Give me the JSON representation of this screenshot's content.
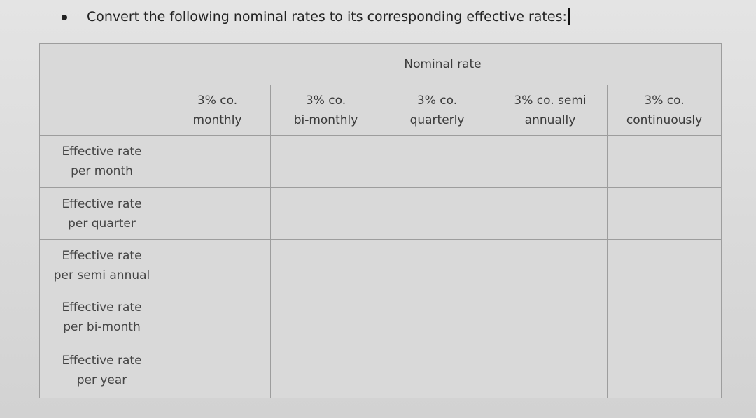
{
  "instruction": {
    "text": "Convert the following nominal rates to its corresponding effective rates:"
  },
  "table": {
    "group_header": "Nominal rate",
    "columns": [
      {
        "line1": "3% co.",
        "line2": "monthly"
      },
      {
        "line1": "3% co.",
        "line2": "bi-monthly"
      },
      {
        "line1": "3% co.",
        "line2": "quarterly"
      },
      {
        "line1": "3% co. semi",
        "line2": "annually"
      },
      {
        "line1": "3% co.",
        "line2": "continuously"
      }
    ],
    "rows": [
      {
        "line1": "Effective rate",
        "line2": "per month"
      },
      {
        "line1": "Effective rate",
        "line2": "per quarter"
      },
      {
        "line1": "Effective rate",
        "line2": "per semi annual"
      },
      {
        "line1": "Effective rate",
        "line2": "per bi-month"
      },
      {
        "line1": "Effective rate",
        "line2": "per year"
      }
    ]
  }
}
